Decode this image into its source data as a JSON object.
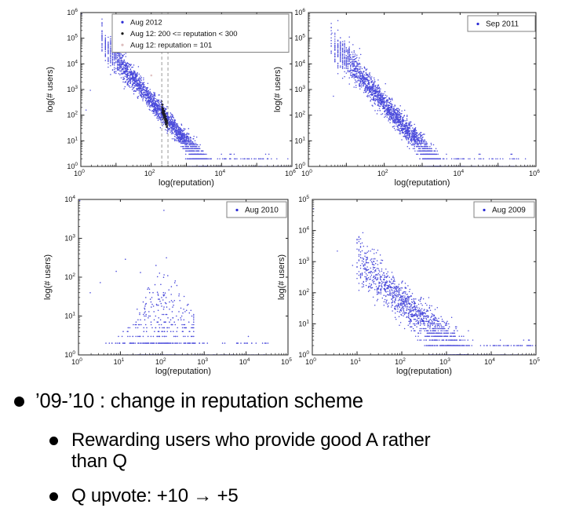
{
  "slide": {
    "bullets": [
      {
        "level": 1,
        "lines": [
          "’09-’10 : change in reputation scheme"
        ]
      },
      {
        "level": 2,
        "lines": [
          "Rewarding users who provide good A rather",
          "than Q"
        ]
      },
      {
        "level": 2,
        "lines": [
          "Q upvote: +10 → +5"
        ]
      }
    ]
  },
  "colors": {
    "scatter_blue": "#2b2bd5",
    "cluster_black": "#141414",
    "marker_pink": "#debdbd",
    "dashed_gray": "#9a9a9a",
    "axis": "#222222",
    "legend_border": "#808080"
  },
  "chart_data": [
    {
      "type": "scatter",
      "scale": "log-log",
      "position": "top-left",
      "xlabel": "log(reputation)",
      "ylabel": "log(# users)",
      "xlim_exp": [
        0,
        6
      ],
      "ylim_exp": [
        0,
        6
      ],
      "xticks_exp": [
        0,
        2,
        4,
        6
      ],
      "yticks_exp": [
        0,
        1,
        2,
        3,
        4,
        5,
        6
      ],
      "grid": false,
      "legend_position": "top-right-inside",
      "legend": [
        {
          "label": "Aug 2012",
          "color": "#2b2bd5"
        },
        {
          "label": "Aug 12: 200 <= reputation < 300",
          "color": "#141414"
        },
        {
          "label": "Aug 12: reputation = 101",
          "color": "#debdbd"
        }
      ],
      "vlines_x": [
        200,
        300
      ],
      "series": [
        {
          "name": "Aug 2012",
          "color": "#2b2bd5",
          "size": 1.5,
          "opacity": 0.85,
          "gen": {
            "kind": "powerlaw",
            "seed": 11,
            "n": 2400,
            "a": 5.9,
            "slope": 1.65,
            "xmin": 0.55,
            "xmax": 3.6,
            "spread": 0.2,
            "xquant": 1.6,
            "ymax": 6,
            "tail_n": 260,
            "tail_x0": 3.0,
            "tail_x1": 6.0
          },
          "outliers": [
            [
              0.02,
              5.95
            ],
            [
              0.27,
              2.97
            ],
            [
              0.15,
              2.2
            ]
          ]
        },
        {
          "name": "Aug 12: 200 <= reputation < 300",
          "color": "#141414",
          "size": 1.7,
          "opacity": 0.9,
          "gen": {
            "kind": "cluster",
            "seed": 7,
            "n": 175,
            "x0": 2.301,
            "x1": 2.468,
            "ytop": 2.32,
            "slope": 4.4,
            "spread": 0.1,
            "ymin": 1.5
          },
          "outliers": []
        },
        {
          "name": "Aug 12: reputation = 101",
          "color": "#debdbd",
          "size": 2.6,
          "opacity": 0.9,
          "gen": {
            "kind": "points"
          },
          "outliers": [
            [
              2.004,
              3.55
            ]
          ]
        }
      ]
    },
    {
      "type": "scatter",
      "scale": "log-log",
      "position": "top-right",
      "xlabel": "log(reputation)",
      "ylabel": "log(# users)",
      "xlim_exp": [
        0,
        6
      ],
      "ylim_exp": [
        0,
        6
      ],
      "xticks_exp": [
        0,
        2,
        4,
        6
      ],
      "yticks_exp": [
        0,
        1,
        2,
        3,
        4,
        5,
        6
      ],
      "grid": false,
      "legend_position": "top-right-inside",
      "legend": [
        {
          "label": "Sep 2011",
          "color": "#2b2bd5"
        }
      ],
      "vlines_x": [],
      "series": [
        {
          "name": "Sep 2011",
          "color": "#2b2bd5",
          "size": 1.5,
          "opacity": 0.85,
          "gen": {
            "kind": "powerlaw",
            "seed": 23,
            "n": 2200,
            "a": 5.85,
            "slope": 1.7,
            "xmin": 0.6,
            "xmax": 3.5,
            "spread": 0.22,
            "xquant": 1.6,
            "ymax": 6,
            "tail_n": 240,
            "tail_x0": 2.9,
            "tail_x1": 5.75
          },
          "outliers": [
            [
              0.62,
              5.2
            ],
            [
              1.07,
              4.6
            ],
            [
              1.35,
              4.6
            ],
            [
              0.66,
              2.74
            ]
          ]
        }
      ]
    },
    {
      "type": "scatter",
      "scale": "log-log",
      "position": "bottom-left",
      "xlabel": "log(reputation)",
      "ylabel": "log(# users)",
      "xlim_exp": [
        0,
        5
      ],
      "ylim_exp": [
        0,
        4
      ],
      "xticks_exp": [
        0,
        1,
        2,
        3,
        4,
        5
      ],
      "yticks_exp": [
        0,
        1,
        2,
        3,
        4
      ],
      "grid": false,
      "legend_position": "top-right-inside",
      "legend": [
        {
          "label": "Aug 2010",
          "color": "#2b2bd5"
        }
      ],
      "vlines_x": [],
      "series": [
        {
          "name": "Aug 2010",
          "color": "#2b2bd5",
          "size": 1.6,
          "opacity": 0.85,
          "gen": {
            "kind": "cloud",
            "seed": 5,
            "n": 430,
            "cx": 2.0,
            "sx": 0.6,
            "xlo": 0.35,
            "xhi": 2.75,
            "env_cx": 2.05,
            "env_w": 0.55,
            "tail_n": 250,
            "tail_x0": 1.4,
            "tail_x1": 4.55
          },
          "outliers": [
            [
              0.03,
              3.97
            ],
            [
              2.04,
              3.72
            ],
            [
              1.12,
              2.46
            ],
            [
              0.52,
              1.86
            ],
            [
              1.48,
              2.12
            ],
            [
              2.1,
              2.5
            ],
            [
              1.85,
              2.3
            ],
            [
              0.28,
              1.6
            ],
            [
              0.9,
              2.15
            ]
          ]
        }
      ]
    },
    {
      "type": "scatter",
      "scale": "log-log",
      "position": "bottom-right",
      "xlabel": "log(reputation)",
      "ylabel": "log(# users)",
      "xlim_exp": [
        0,
        5
      ],
      "ylim_exp": [
        0,
        5
      ],
      "xticks_exp": [
        0,
        1,
        2,
        3,
        4,
        5
      ],
      "yticks_exp": [
        0,
        1,
        2,
        3,
        4,
        5
      ],
      "grid": false,
      "legend_position": "top-right-inside",
      "legend": [
        {
          "label": "Aug 2009",
          "color": "#2b2bd5"
        }
      ],
      "vlines_x": [],
      "series": [
        {
          "name": "Aug 2009",
          "color": "#2b2bd5",
          "size": 1.5,
          "opacity": 0.85,
          "gen": {
            "kind": "powerlaw",
            "seed": 9,
            "n": 1500,
            "a": 4.35,
            "slope": 1.3,
            "xmin": 1.0,
            "xmax": 3.5,
            "spread": 0.3,
            "xquant": 1.55,
            "ymax": 5,
            "tail_n": 300,
            "tail_x0": 2.6,
            "tail_x1": 5.0
          },
          "outliers": [
            [
              0.03,
              4.7
            ],
            [
              1.13,
              3.93
            ],
            [
              0.56,
              3.34
            ],
            [
              1.34,
              3.4
            ],
            [
              0.9,
              2.88
            ],
            [
              1.45,
              3.03
            ]
          ]
        }
      ]
    }
  ]
}
